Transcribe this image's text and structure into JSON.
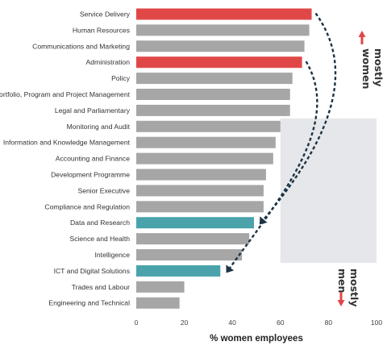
{
  "chart_data": {
    "type": "bar",
    "orientation": "horizontal",
    "categories": [
      "Service Delivery",
      "Human Resources",
      "Communications and Marketing",
      "Administration",
      "Policy",
      "Portfolio, Program and Project Management",
      "Legal and Parliamentary",
      "Monitoring and Audit",
      "Information and Knowledge Management",
      "Accounting and Finance",
      "Development Programme",
      "Senior Executive",
      "Compliance and Regulation",
      "Data and Research",
      "Science and Health",
      "Intelligence",
      "ICT and Digital Solutions",
      "Trades and Labour",
      "Engineering and Technical"
    ],
    "values": [
      73,
      72,
      70,
      69,
      65,
      64,
      64,
      60,
      58,
      57,
      54,
      53,
      53,
      49,
      47,
      44,
      35,
      20,
      18
    ],
    "colors": [
      "#e04848",
      "#a6a6a6",
      "#a6a6a6",
      "#e04848",
      "#a6a6a6",
      "#a6a6a6",
      "#a6a6a6",
      "#a6a6a6",
      "#a6a6a6",
      "#a6a6a6",
      "#a6a6a6",
      "#a6a6a6",
      "#a6a6a6",
      "#4aa3ab",
      "#a6a6a6",
      "#a6a6a6",
      "#4aa3ab",
      "#a6a6a6",
      "#a6a6a6"
    ],
    "xlabel": "% women employees",
    "xlim": [
      0,
      100
    ],
    "xticks": [
      0,
      20,
      40,
      60,
      80,
      100
    ],
    "shaded_band": {
      "x_from": 60,
      "x_to": 100,
      "from_category": "Monitoring and Audit",
      "to_category": "Intelligence",
      "color": "#e6e7eb"
    },
    "arrows": [
      {
        "from": "Service Delivery",
        "to": "Data and Research",
        "color": "#1b3345"
      },
      {
        "from": "Administration",
        "to": "ICT and Digital Solutions",
        "color": "#1b3345"
      }
    ],
    "annotations": {
      "top": {
        "text": "mostly women",
        "lines": [
          "mostly",
          "women"
        ],
        "arrow": "up",
        "arrow_color": "#e04848"
      },
      "bottom": {
        "text": "mostly men",
        "lines": [
          "mostly",
          "men"
        ],
        "arrow": "down",
        "arrow_color": "#e04848"
      }
    }
  }
}
